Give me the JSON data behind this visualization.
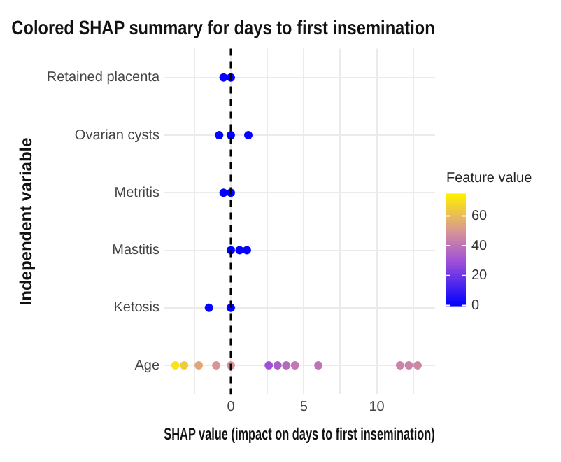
{
  "chart_data": {
    "type": "scatter",
    "title": "Colored SHAP summary for days to first insemination",
    "xlabel": "SHAP value (impact on days to first insemination)",
    "ylabel": "Independent variable",
    "legend_title": "Feature value",
    "orientation": "horizontal",
    "marker": "circle",
    "grid": true,
    "categories": [
      "Retained placenta",
      "Ovarian cysts",
      "Metritis",
      "Mastitis",
      "Ketosis",
      "Age"
    ],
    "series": [
      {
        "x": [
          "Retained placenta",
          "Retained placenta",
          "Ovarian cysts",
          "Ovarian cysts",
          "Ovarian cysts",
          "Metritis",
          "Metritis",
          "Mastitis",
          "Mastitis",
          "Mastitis",
          "Ketosis",
          "Ketosis",
          "Age",
          "Age",
          "Age",
          "Age",
          "Age",
          "Age",
          "Age",
          "Age",
          "Age",
          "Age",
          "Age",
          "Age",
          "Age"
        ],
        "values": [
          -0.5,
          0,
          -0.8,
          0,
          1.2,
          -0.5,
          0,
          0,
          0.6,
          1.1,
          -1.5,
          0,
          -3.8,
          -3.2,
          -2.2,
          -1,
          0,
          2.6,
          3.2,
          3.8,
          4.4,
          6,
          11.6,
          12.2,
          12.8
        ],
        "cvalues": [
          1,
          0,
          1,
          0,
          1,
          1,
          0,
          0,
          1,
          1,
          1,
          0,
          72,
          65,
          55,
          50,
          50,
          30,
          34,
          38,
          42,
          40,
          45,
          45,
          46
        ]
      }
    ],
    "xlim": [
      -4.6,
      14
    ],
    "xticks": [
      {
        "value": -2.5,
        "label": null
      },
      0,
      {
        "value": 2.5,
        "label": null
      },
      5,
      {
        "value": 7.5,
        "label": null
      },
      10,
      {
        "value": 12.5,
        "label": null
      }
    ],
    "clim": [
      0,
      75
    ],
    "cticks": [
      0,
      20,
      40,
      60
    ],
    "ref_lines": [
      {
        "axis": "x",
        "value": 0,
        "label": null,
        "color": "#000000",
        "line_style": "dashed"
      }
    ]
  }
}
